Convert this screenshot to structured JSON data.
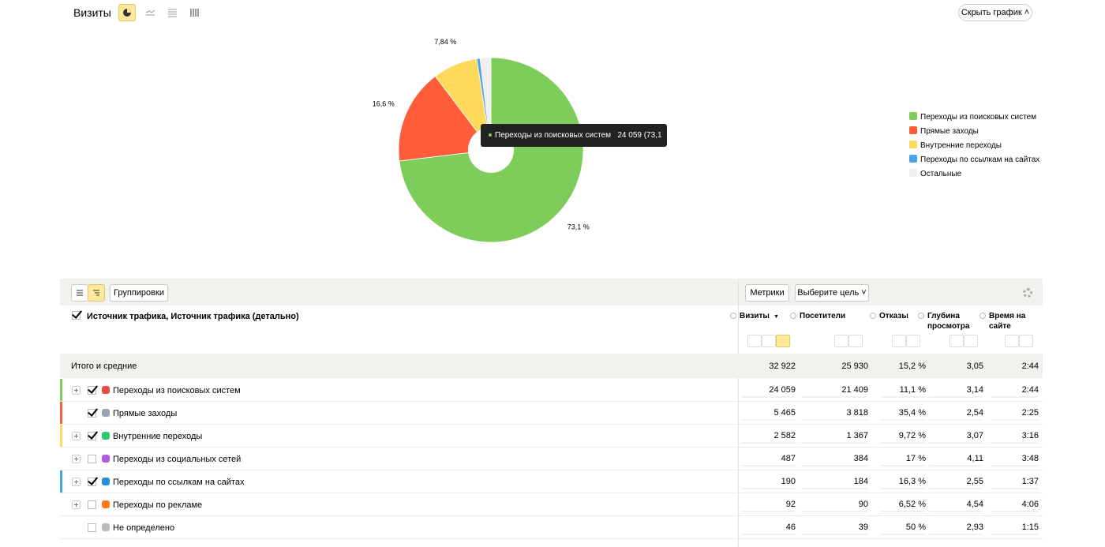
{
  "header": {
    "title": "Визиты",
    "hide_button": "Скрыть график"
  },
  "chart_data": {
    "type": "pie",
    "categories": [
      "Переходы из поисковых систем",
      "Прямые заходы",
      "Внутренние переходы",
      "Переходы по ссылкам на сайтах",
      "Остальные"
    ],
    "values": [
      73.1,
      16.6,
      7.84,
      0.58,
      1.88
    ],
    "value_labels": [
      "73,1 %",
      "16,6 %",
      "7,84 %",
      null,
      null
    ],
    "colors": [
      "#7ecc5a",
      "#ff5c3a",
      "#ffd95a",
      "#4aa5e6",
      "#efefef"
    ],
    "legend": "right",
    "tooltip": {
      "label": "Переходы из поисковых систем",
      "value": "24 059 (73,1 %)"
    }
  },
  "toolbar": {
    "groupings": "Группировки",
    "metrics": "Метрики",
    "goal": "Выберите цель"
  },
  "table": {
    "dimension_header": "Источник трафика, Источник трафика (детально)",
    "columns": [
      "Визиты",
      "Посетители",
      "Отказы",
      "Глубина просмотра",
      "Время на сайте"
    ],
    "sort_mark": "▼",
    "totals": {
      "label": "Итого и средние",
      "values": [
        "32 922",
        "25 930",
        "15,2 %",
        "3,05",
        "2:44"
      ]
    },
    "rows": [
      {
        "label": "Переходы из поисковых систем",
        "checked": true,
        "expandable": true,
        "color": "#7ecc5a",
        "values": [
          "24 059",
          "21 409",
          "11,1 %",
          "3,14",
          "2:44"
        ]
      },
      {
        "label": "Прямые заходы",
        "checked": true,
        "expandable": false,
        "color": "#ff5c3a",
        "values": [
          "5 465",
          "3 818",
          "35,4 %",
          "2,54",
          "2:25"
        ]
      },
      {
        "label": "Внутренние переходы",
        "checked": true,
        "expandable": true,
        "color": "#ffd95a",
        "values": [
          "2 582",
          "1 367",
          "9,72 %",
          "3,07",
          "3:16"
        ]
      },
      {
        "label": "Переходы из социальных сетей",
        "checked": false,
        "expandable": true,
        "values": [
          "487",
          "384",
          "17 %",
          "4,11",
          "3:48"
        ]
      },
      {
        "label": "Переходы по ссылкам на сайтах",
        "checked": true,
        "expandable": true,
        "color": "#4aa5e6",
        "values": [
          "190",
          "184",
          "16,3 %",
          "2,55",
          "1:37"
        ]
      },
      {
        "label": "Переходы по рекламе",
        "checked": false,
        "expandable": true,
        "values": [
          "92",
          "90",
          "6,52 %",
          "4,54",
          "4:06"
        ]
      },
      {
        "label": "Не определено",
        "checked": false,
        "expandable": false,
        "values": [
          "46",
          "39",
          "50 %",
          "2,93",
          "1:15"
        ]
      }
    ]
  }
}
